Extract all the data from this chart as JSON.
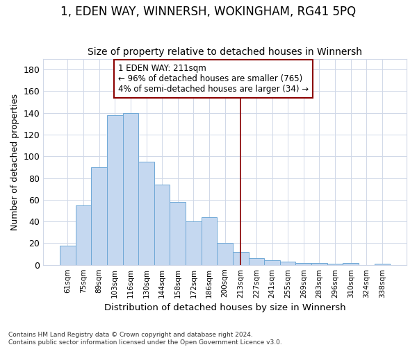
{
  "title": "1, EDEN WAY, WINNERSH, WOKINGHAM, RG41 5PQ",
  "subtitle": "Size of property relative to detached houses in Winnersh",
  "xlabel": "Distribution of detached houses by size in Winnersh",
  "ylabel": "Number of detached properties",
  "footer_line1": "Contains HM Land Registry data © Crown copyright and database right 2024.",
  "footer_line2": "Contains public sector information licensed under the Open Government Licence v3.0.",
  "categories": [
    "61sqm",
    "75sqm",
    "89sqm",
    "103sqm",
    "116sqm",
    "130sqm",
    "144sqm",
    "158sqm",
    "172sqm",
    "186sqm",
    "200sqm",
    "213sqm",
    "227sqm",
    "241sqm",
    "255sqm",
    "269sqm",
    "283sqm",
    "296sqm",
    "310sqm",
    "324sqm",
    "338sqm"
  ],
  "values": [
    18,
    55,
    90,
    138,
    140,
    95,
    74,
    58,
    40,
    44,
    20,
    12,
    6,
    4,
    3,
    2,
    2,
    1,
    2,
    0,
    1
  ],
  "bar_color": "#c5d8f0",
  "bar_edge_color": "#6fa8d6",
  "highlight_color": "#8b0000",
  "vline_index": 11,
  "annotation_title": "1 EDEN WAY: 211sqm",
  "annotation_line1": "← 96% of detached houses are smaller (765)",
  "annotation_line2": "4% of semi-detached houses are larger (34) →",
  "ylim": [
    0,
    190
  ],
  "yticks": [
    0,
    20,
    40,
    60,
    80,
    100,
    120,
    140,
    160,
    180
  ],
  "title_fontsize": 12,
  "subtitle_fontsize": 10,
  "annotation_box_edge_color": "#8b0000",
  "grid_color": "#d0d8e8"
}
